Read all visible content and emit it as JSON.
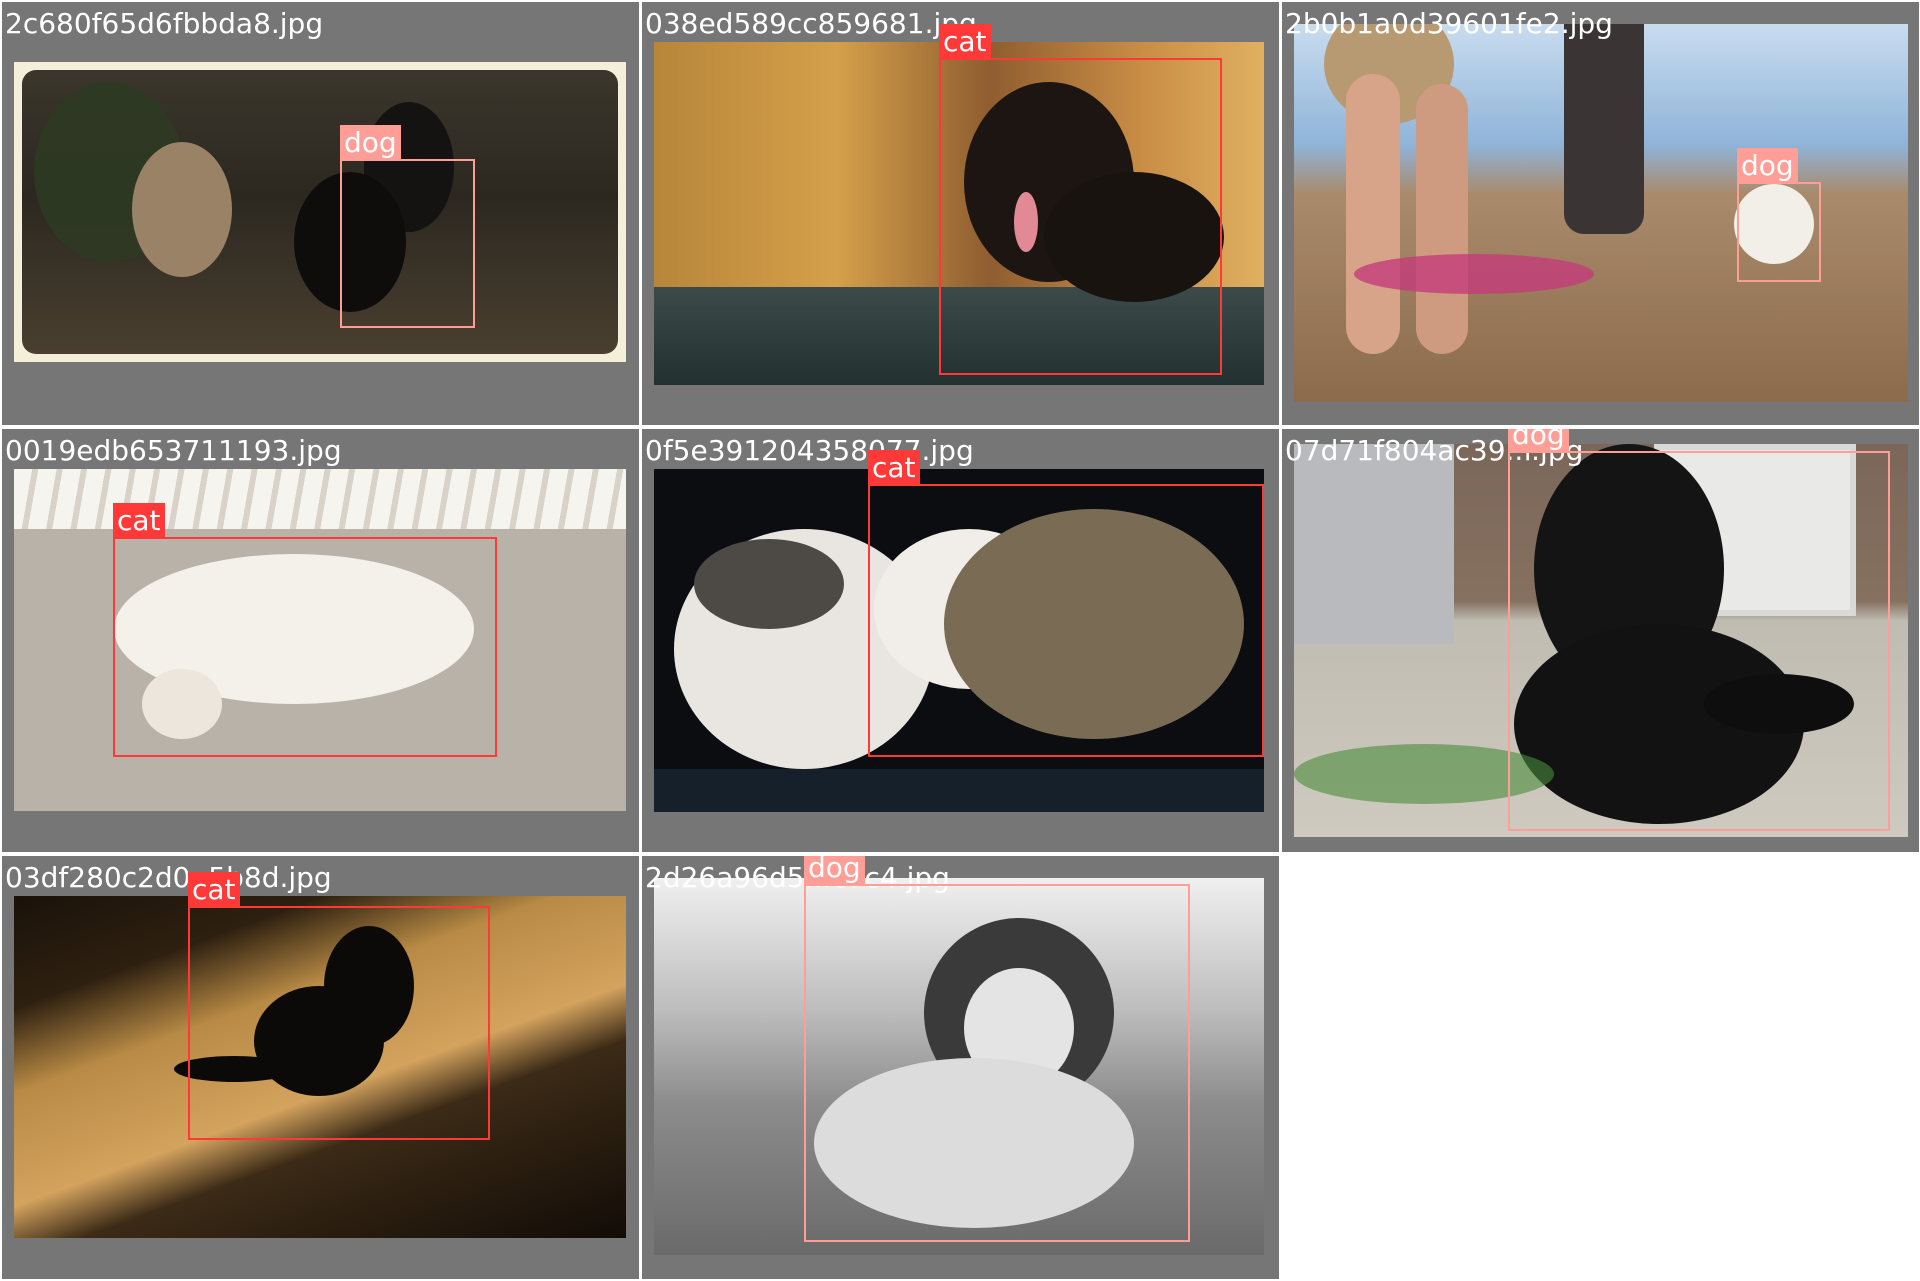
{
  "grid": {
    "tiles": [
      {
        "filename": "2c680f65d6fbbda8.jpg",
        "detections": [
          {
            "label": "dog",
            "class": "dog"
          }
        ]
      },
      {
        "filename": "038ed589cc859681.jpg",
        "detections": [
          {
            "label": "cat",
            "class": "cat"
          }
        ]
      },
      {
        "filename": "2b0b1a0d39601fe2.jpg",
        "detections": [
          {
            "label": "dog",
            "class": "dog"
          }
        ]
      },
      {
        "filename": "0019edb653711193.jpg",
        "detections": [
          {
            "label": "cat",
            "class": "cat"
          }
        ]
      },
      {
        "filename": "0f5e391204358077.jpg",
        "detections": [
          {
            "label": "cat",
            "class": "cat"
          }
        ]
      },
      {
        "filename": "07d71f804ac39..f.jpg",
        "detections": [
          {
            "label": "dog",
            "class": "dog"
          }
        ]
      },
      {
        "filename": "03df280c2d0..5b8d.jpg",
        "detections": [
          {
            "label": "cat",
            "class": "cat"
          }
        ]
      },
      {
        "filename": "2d26a96d5...c7c4.jpg",
        "detections": [
          {
            "label": "dog",
            "class": "dog"
          }
        ]
      }
    ]
  },
  "colors": {
    "tile_background": "#767676",
    "cat_box": "#ff3838",
    "dog_box": "#ff9d97",
    "label_text": "#ffffff"
  }
}
